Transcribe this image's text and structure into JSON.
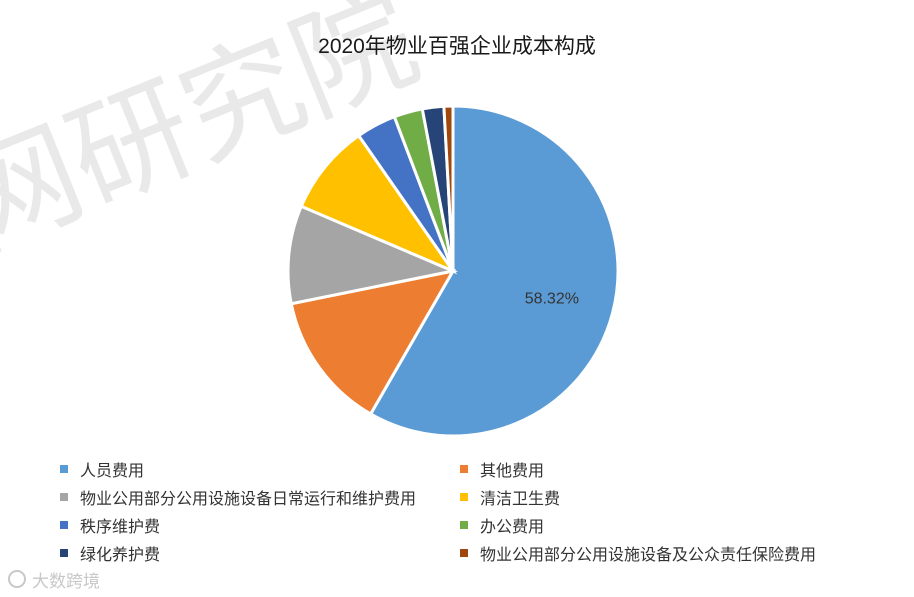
{
  "watermark": "网研究院",
  "brand": "大数跨境",
  "chart_data": {
    "type": "pie",
    "title": "2020年物业百强企业成本构成",
    "slices": [
      {
        "label": "人员费用",
        "value": 58.32,
        "color": "#5B9BD5",
        "show_label": "58.32%"
      },
      {
        "label": "其他费用",
        "value": 13.5,
        "color": "#ED7D31"
      },
      {
        "label": "物业公用部分公用设施设备日常运行和维护费用",
        "value": 9.6,
        "color": "#A5A5A5"
      },
      {
        "label": "清洁卫生费",
        "value": 8.9,
        "color": "#FFC000"
      },
      {
        "label": "秩序维护费",
        "value": 3.9,
        "color": "#4472C4"
      },
      {
        "label": "办公费用",
        "value": 2.8,
        "color": "#70AD47"
      },
      {
        "label": "绿化养护费",
        "value": 2.1,
        "color": "#264478"
      },
      {
        "label": "物业公用部分公用设施设备及公众责任保险费用",
        "value": 0.88,
        "color": "#9E480E"
      }
    ],
    "legend_position": "bottom"
  }
}
